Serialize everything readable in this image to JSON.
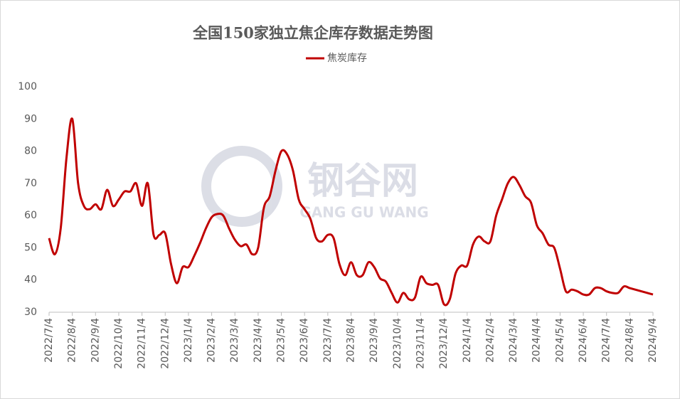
{
  "chart_data": {
    "type": "line",
    "title": "全国150家独立焦企库存数据走势图",
    "watermark": {
      "brand": "钢谷网",
      "pinyin": "GANG GU WANG"
    },
    "legend": "top",
    "categories": [
      "2022/7/4",
      null,
      null,
      null,
      "2022/8/4",
      null,
      null,
      null,
      "2022/9/4",
      null,
      null,
      null,
      "2022/10/4",
      null,
      null,
      null,
      "2022/11/4",
      null,
      null,
      null,
      "2022/12/4",
      null,
      null,
      null,
      "2023/1/4",
      null,
      null,
      null,
      "2023/2/4",
      null,
      null,
      null,
      "2023/3/4",
      null,
      null,
      null,
      "2023/4/4",
      null,
      null,
      null,
      "2023/5/4",
      null,
      null,
      null,
      "2023/6/4",
      null,
      null,
      null,
      "2023/7/4",
      null,
      null,
      null,
      "2023/8/4",
      null,
      null,
      null,
      "2023/9/4",
      null,
      null,
      null,
      "2023/10/4",
      null,
      null,
      null,
      "2023/11/4",
      null,
      null,
      null,
      "2023/12/4",
      null,
      null,
      null,
      "2024/1/4",
      null,
      null,
      null,
      "2024/2/4",
      null,
      null,
      null,
      "2024/3/4",
      null,
      null,
      null,
      "2024/4/4",
      null,
      null,
      null,
      "2024/5/4",
      null,
      null,
      null,
      "2024/6/4",
      null,
      null,
      null,
      "2024/7/4",
      null,
      null,
      null,
      "2024/8/4",
      null,
      null,
      null,
      "2024/9/4"
    ],
    "series": [
      {
        "name": "焦炭库存",
        "color": "#c00000",
        "values": [
          53,
          48,
          56,
          78,
          90,
          70,
          63,
          62,
          63.5,
          62,
          68,
          63,
          65,
          67.5,
          67.5,
          70,
          63,
          70,
          54,
          54,
          54.5,
          45,
          39,
          44,
          44,
          47.5,
          51.5,
          56,
          59.5,
          60.5,
          60,
          56,
          52.5,
          50.5,
          51,
          48,
          50,
          62.5,
          66,
          74,
          80,
          79,
          74,
          65,
          62,
          59,
          53,
          52,
          54,
          53,
          45,
          41.5,
          45.5,
          41.5,
          41.5,
          45.5,
          44,
          40.5,
          39.5,
          36,
          33,
          36,
          34,
          34.5,
          41,
          39,
          38.5,
          38.5,
          32.5,
          34,
          42,
          44.5,
          44.5,
          51,
          53.5,
          52,
          52,
          60,
          65,
          70,
          72,
          69.5,
          66,
          64,
          57,
          54.5,
          51,
          50,
          43.5,
          36.5,
          37,
          36.5,
          35.5,
          35.5,
          37.5,
          37.5,
          36.5,
          36,
          36,
          38,
          37.5,
          37,
          36.5,
          36,
          35.5
        ]
      }
    ],
    "ylim": [
      30,
      100
    ],
    "yticks": [
      30,
      40,
      50,
      60,
      70,
      80,
      90,
      100
    ],
    "grid": false
  }
}
